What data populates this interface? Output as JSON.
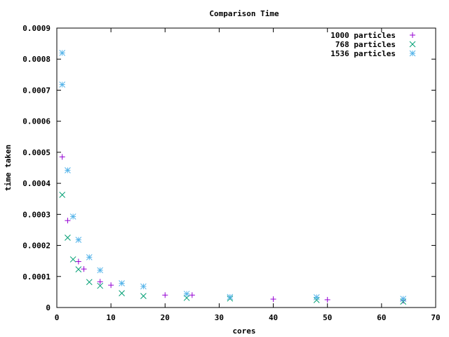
{
  "chart_data": {
    "type": "scatter",
    "title": "Comparison Time",
    "xlabel": "cores",
    "ylabel": "time taken",
    "xlim": [
      0,
      70
    ],
    "ylim": [
      0,
      0.0009
    ],
    "x_ticks": [
      "0",
      "10",
      "20",
      "30",
      "40",
      "50",
      "60",
      "70"
    ],
    "y_ticks": [
      "0",
      "0.0001",
      "0.0002",
      "0.0003",
      "0.0004",
      "0.0005",
      "0.0006",
      "0.0007",
      "0.0008",
      "0.0009"
    ],
    "grid": false,
    "legend_position": "top-right",
    "series": [
      {
        "name": "1000 particles",
        "marker": "plus",
        "color": "#9400d3",
        "points": [
          [
            1,
            0.000485
          ],
          [
            2,
            0.00028
          ],
          [
            4,
            0.000148
          ],
          [
            5,
            0.000124
          ],
          [
            8,
            8.3e-05
          ],
          [
            10,
            7.2e-05
          ],
          [
            20,
            4e-05
          ],
          [
            25,
            4e-05
          ],
          [
            40,
            2.7e-05
          ],
          [
            50,
            2.5e-05
          ],
          [
            64,
            2.2e-05
          ]
        ]
      },
      {
        "name": "768 particles",
        "marker": "cross",
        "color": "#009e73",
        "points": [
          [
            1,
            0.000363
          ],
          [
            2,
            0.000225
          ],
          [
            3,
            0.000155
          ],
          [
            4,
            0.000123
          ],
          [
            6,
            8.2e-05
          ],
          [
            8,
            7e-05
          ],
          [
            12,
            4.6e-05
          ],
          [
            16,
            3.7e-05
          ],
          [
            24,
            3.1e-05
          ],
          [
            32,
            2.9e-05
          ],
          [
            48,
            2.4e-05
          ],
          [
            64,
            1.9e-05
          ]
        ]
      },
      {
        "name": "1536 particles",
        "marker": "star",
        "color": "#56b4e9",
        "points": [
          [
            1,
            0.00082
          ],
          [
            1,
            0.000718
          ],
          [
            2,
            0.000442
          ],
          [
            3,
            0.000293
          ],
          [
            4,
            0.000218
          ],
          [
            6,
            0.000162
          ],
          [
            8,
            0.00012
          ],
          [
            12,
            7.8e-05
          ],
          [
            16,
            6.8e-05
          ],
          [
            24,
            4.4e-05
          ],
          [
            32,
            3.4e-05
          ],
          [
            48,
            3.3e-05
          ],
          [
            64,
            2.8e-05
          ]
        ]
      }
    ]
  }
}
